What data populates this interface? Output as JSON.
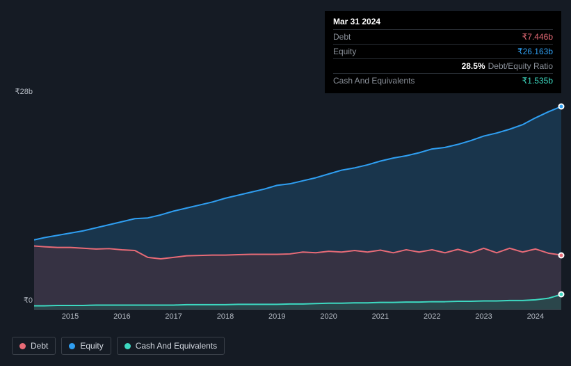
{
  "tooltip": {
    "date": "Mar 31 2024",
    "rows": [
      {
        "label": "Debt",
        "value": "₹7.446b",
        "color": "#e86b77"
      },
      {
        "label": "Equity",
        "value": "₹26.163b",
        "color": "#2f9ff2"
      },
      {
        "label": "",
        "ratio_value": "28.5%",
        "ratio_label": "Debt/Equity Ratio"
      },
      {
        "label": "Cash And Equivalents",
        "value": "₹1.535b",
        "color": "#3dd9c1"
      }
    ]
  },
  "chart": {
    "type": "area",
    "background_color": "#151b24",
    "plot_background_color": "#151b24",
    "baseline_color": "#525964",
    "grid_color": "#2a2f36",
    "axis_fontsize": 11,
    "axis_color": "#b5bbc4",
    "y": {
      "max_label": "₹28b",
      "min_label": "₹0",
      "max": 28,
      "min": 0
    },
    "x": {
      "ticks": [
        "2015",
        "2016",
        "2017",
        "2018",
        "2019",
        "2020",
        "2021",
        "2022",
        "2023",
        "2024"
      ],
      "domain_min": 2014.3,
      "domain_max": 2024.5
    },
    "series": {
      "equity": {
        "label": "Equity",
        "stroke": "#2f9ff2",
        "fill": "#1e4a6e",
        "fill_opacity": 0.55,
        "values": [
          [
            2014.3,
            9.2
          ],
          [
            2014.5,
            9.5
          ],
          [
            2014.75,
            9.8
          ],
          [
            2015,
            10.1
          ],
          [
            2015.25,
            10.4
          ],
          [
            2015.5,
            10.8
          ],
          [
            2015.75,
            11.2
          ],
          [
            2016,
            11.6
          ],
          [
            2016.25,
            12.0
          ],
          [
            2016.5,
            12.1
          ],
          [
            2016.75,
            12.5
          ],
          [
            2017,
            13.0
          ],
          [
            2017.25,
            13.4
          ],
          [
            2017.5,
            13.8
          ],
          [
            2017.75,
            14.2
          ],
          [
            2018,
            14.7
          ],
          [
            2018.25,
            15.1
          ],
          [
            2018.5,
            15.5
          ],
          [
            2018.75,
            15.9
          ],
          [
            2019,
            16.4
          ],
          [
            2019.25,
            16.6
          ],
          [
            2019.5,
            17.0
          ],
          [
            2019.75,
            17.4
          ],
          [
            2020,
            17.9
          ],
          [
            2020.25,
            18.4
          ],
          [
            2020.5,
            18.7
          ],
          [
            2020.75,
            19.1
          ],
          [
            2021,
            19.6
          ],
          [
            2021.25,
            20.0
          ],
          [
            2021.5,
            20.3
          ],
          [
            2021.75,
            20.7
          ],
          [
            2022,
            21.2
          ],
          [
            2022.25,
            21.4
          ],
          [
            2022.5,
            21.8
          ],
          [
            2022.75,
            22.3
          ],
          [
            2023,
            22.9
          ],
          [
            2023.25,
            23.3
          ],
          [
            2023.5,
            23.8
          ],
          [
            2023.75,
            24.4
          ],
          [
            2024,
            25.3
          ],
          [
            2024.25,
            26.1
          ],
          [
            2024.5,
            26.8
          ]
        ]
      },
      "debt": {
        "label": "Debt",
        "stroke": "#e86b77",
        "fill": "#5a2f39",
        "fill_opacity": 0.45,
        "values": [
          [
            2014.3,
            8.4
          ],
          [
            2014.5,
            8.3
          ],
          [
            2014.75,
            8.2
          ],
          [
            2015,
            8.2
          ],
          [
            2015.25,
            8.1
          ],
          [
            2015.5,
            8.0
          ],
          [
            2015.75,
            8.05
          ],
          [
            2016,
            7.9
          ],
          [
            2016.25,
            7.8
          ],
          [
            2016.5,
            6.9
          ],
          [
            2016.75,
            6.7
          ],
          [
            2017,
            6.9
          ],
          [
            2017.25,
            7.1
          ],
          [
            2017.5,
            7.15
          ],
          [
            2017.75,
            7.2
          ],
          [
            2018,
            7.2
          ],
          [
            2018.25,
            7.25
          ],
          [
            2018.5,
            7.3
          ],
          [
            2018.75,
            7.3
          ],
          [
            2019,
            7.3
          ],
          [
            2019.25,
            7.35
          ],
          [
            2019.5,
            7.6
          ],
          [
            2019.75,
            7.5
          ],
          [
            2020,
            7.7
          ],
          [
            2020.25,
            7.6
          ],
          [
            2020.5,
            7.8
          ],
          [
            2020.75,
            7.6
          ],
          [
            2021,
            7.85
          ],
          [
            2021.25,
            7.5
          ],
          [
            2021.5,
            7.9
          ],
          [
            2021.75,
            7.6
          ],
          [
            2022,
            7.9
          ],
          [
            2022.25,
            7.5
          ],
          [
            2022.5,
            7.95
          ],
          [
            2022.75,
            7.5
          ],
          [
            2023,
            8.1
          ],
          [
            2023.25,
            7.5
          ],
          [
            2023.5,
            8.1
          ],
          [
            2023.75,
            7.6
          ],
          [
            2024,
            8.0
          ],
          [
            2024.25,
            7.45
          ],
          [
            2024.5,
            7.2
          ]
        ]
      },
      "cash": {
        "label": "Cash And Equivalents",
        "stroke": "#3dd9c1",
        "fill": "#1f5a53",
        "fill_opacity": 0.5,
        "values": [
          [
            2014.3,
            0.5
          ],
          [
            2014.5,
            0.5
          ],
          [
            2014.75,
            0.55
          ],
          [
            2015,
            0.55
          ],
          [
            2015.25,
            0.55
          ],
          [
            2015.5,
            0.6
          ],
          [
            2015.75,
            0.6
          ],
          [
            2016,
            0.6
          ],
          [
            2016.25,
            0.6
          ],
          [
            2016.5,
            0.6
          ],
          [
            2016.75,
            0.6
          ],
          [
            2017,
            0.6
          ],
          [
            2017.25,
            0.65
          ],
          [
            2017.5,
            0.65
          ],
          [
            2017.75,
            0.65
          ],
          [
            2018,
            0.65
          ],
          [
            2018.25,
            0.7
          ],
          [
            2018.5,
            0.7
          ],
          [
            2018.75,
            0.7
          ],
          [
            2019,
            0.7
          ],
          [
            2019.25,
            0.75
          ],
          [
            2019.5,
            0.75
          ],
          [
            2019.75,
            0.8
          ],
          [
            2020,
            0.85
          ],
          [
            2020.25,
            0.85
          ],
          [
            2020.5,
            0.9
          ],
          [
            2020.75,
            0.9
          ],
          [
            2021,
            0.95
          ],
          [
            2021.25,
            0.95
          ],
          [
            2021.5,
            1.0
          ],
          [
            2021.75,
            1.0
          ],
          [
            2022,
            1.05
          ],
          [
            2022.25,
            1.05
          ],
          [
            2022.5,
            1.1
          ],
          [
            2022.75,
            1.1
          ],
          [
            2023,
            1.15
          ],
          [
            2023.25,
            1.15
          ],
          [
            2023.5,
            1.2
          ],
          [
            2023.75,
            1.2
          ],
          [
            2024,
            1.3
          ],
          [
            2024.25,
            1.5
          ],
          [
            2024.5,
            2.0
          ]
        ]
      }
    }
  },
  "legend": [
    {
      "label": "Debt",
      "color": "#e86b77"
    },
    {
      "label": "Equity",
      "color": "#2f9ff2"
    },
    {
      "label": "Cash And Equivalents",
      "color": "#3dd9c1"
    }
  ]
}
